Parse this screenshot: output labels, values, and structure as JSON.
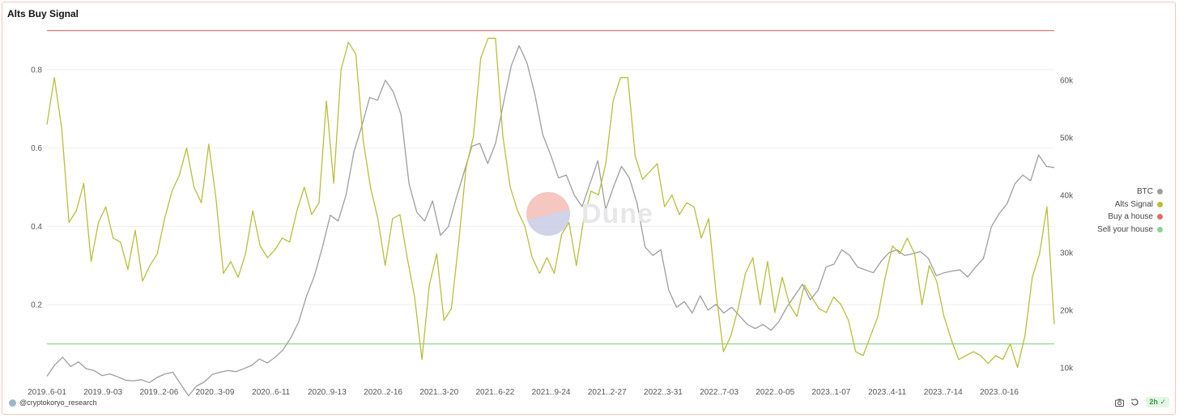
{
  "title": "Alts Buy Signal",
  "watermark": "Dune",
  "footer": {
    "user": "@cryptokoryo_research",
    "refresh_label": "2h"
  },
  "icons": [
    "camera-icon",
    "refresh-icon",
    "check-circle-icon"
  ],
  "colors": {
    "btc": "#9e9e9e",
    "alts_signal": "#b8bf3a",
    "buy_a_house": "#e06b6b",
    "sell_your_house": "#8fd18f"
  },
  "chart_data": {
    "type": "line",
    "x_tick_labels": [
      "2019..6-01",
      "2019..9-03",
      "2019..2-06",
      "2020..3-09",
      "2020..6-11",
      "2020..9-13",
      "2020..2-16",
      "2021..3-20",
      "2021..6-22",
      "2021..9-24",
      "2021..2-27",
      "2022..3-31",
      "2022..7-03",
      "2022..0-05",
      "2023..1-07",
      "2023..4-11",
      "2023..7-14",
      "2023..0-16"
    ],
    "left_axis": {
      "ticks": [
        0.2,
        0.4,
        0.6,
        0.8
      ],
      "range": [
        0.01,
        0.92
      ]
    },
    "right_axis": {
      "ticks": [
        10000,
        20000,
        30000,
        40000,
        50000,
        60000
      ],
      "tick_labels": [
        "10k",
        "20k",
        "30k",
        "40k",
        "50k",
        "60k"
      ],
      "range": [
        8000,
        70000
      ]
    },
    "legend": {
      "position": "right",
      "entries": [
        "BTC",
        "Alts Signal",
        "Buy a house",
        "Sell your house"
      ]
    },
    "thresholds": [
      {
        "name": "Buy a house",
        "value": 0.9
      },
      {
        "name": "Sell your house",
        "value": 0.1
      }
    ],
    "series": [
      {
        "name": "Alts Signal",
        "axis": "left",
        "values": [
          0.66,
          0.78,
          0.65,
          0.41,
          0.44,
          0.51,
          0.31,
          0.41,
          0.45,
          0.37,
          0.36,
          0.29,
          0.39,
          0.26,
          0.3,
          0.33,
          0.42,
          0.49,
          0.53,
          0.6,
          0.5,
          0.46,
          0.61,
          0.47,
          0.28,
          0.31,
          0.27,
          0.33,
          0.44,
          0.35,
          0.32,
          0.34,
          0.37,
          0.36,
          0.44,
          0.5,
          0.43,
          0.46,
          0.72,
          0.51,
          0.8,
          0.87,
          0.84,
          0.62,
          0.5,
          0.42,
          0.3,
          0.42,
          0.43,
          0.32,
          0.22,
          0.06,
          0.25,
          0.33,
          0.16,
          0.19,
          0.36,
          0.55,
          0.63,
          0.83,
          0.88,
          0.88,
          0.63,
          0.5,
          0.44,
          0.4,
          0.32,
          0.28,
          0.32,
          0.28,
          0.38,
          0.41,
          0.3,
          0.42,
          0.49,
          0.48,
          0.56,
          0.72,
          0.78,
          0.78,
          0.58,
          0.52,
          0.54,
          0.56,
          0.45,
          0.48,
          0.43,
          0.46,
          0.45,
          0.37,
          0.42,
          0.23,
          0.08,
          0.12,
          0.19,
          0.28,
          0.32,
          0.2,
          0.31,
          0.18,
          0.27,
          0.2,
          0.17,
          0.25,
          0.22,
          0.19,
          0.18,
          0.22,
          0.2,
          0.16,
          0.08,
          0.07,
          0.12,
          0.17,
          0.27,
          0.35,
          0.33,
          0.37,
          0.33,
          0.2,
          0.3,
          0.26,
          0.17,
          0.11,
          0.06,
          0.07,
          0.08,
          0.07,
          0.05,
          0.07,
          0.06,
          0.1,
          0.04,
          0.12,
          0.27,
          0.33,
          0.45,
          0.15
        ]
      },
      {
        "name": "BTC",
        "axis": "right",
        "values": [
          8500,
          10500,
          11800,
          10200,
          11000,
          9800,
          9500,
          8600,
          8900,
          8400,
          7800,
          7700,
          7900,
          7400,
          8300,
          8900,
          9200,
          7100,
          5100,
          6800,
          7500,
          8800,
          9200,
          9500,
          9300,
          9800,
          10400,
          11500,
          10800,
          11800,
          13100,
          15200,
          18000,
          22500,
          26000,
          31000,
          36500,
          35500,
          40000,
          47500,
          52000,
          57000,
          56500,
          60000,
          58000,
          54000,
          42000,
          37000,
          35500,
          39000,
          33000,
          34500,
          39500,
          44000,
          48500,
          49000,
          45500,
          49000,
          56000,
          62500,
          66000,
          63000,
          57500,
          50500,
          47000,
          43000,
          43500,
          40000,
          38000,
          42000,
          46000,
          37500,
          41500,
          45000,
          43000,
          38500,
          31000,
          29500,
          30500,
          23500,
          20500,
          21500,
          19500,
          22500,
          20000,
          21000,
          19500,
          20500,
          19000,
          17500,
          16800,
          17500,
          16500,
          18000,
          20500,
          22500,
          24500,
          21800,
          23500,
          27500,
          28000,
          30500,
          29500,
          27500,
          27000,
          26500,
          28500,
          30000,
          30500,
          29500,
          29800,
          30200,
          29000,
          26000,
          26500,
          26800,
          27000,
          25800,
          27500,
          29000,
          34500,
          36800,
          38500,
          42000,
          43500,
          42500,
          47000,
          45000,
          44800
        ],
        "description_only": false
      }
    ]
  }
}
